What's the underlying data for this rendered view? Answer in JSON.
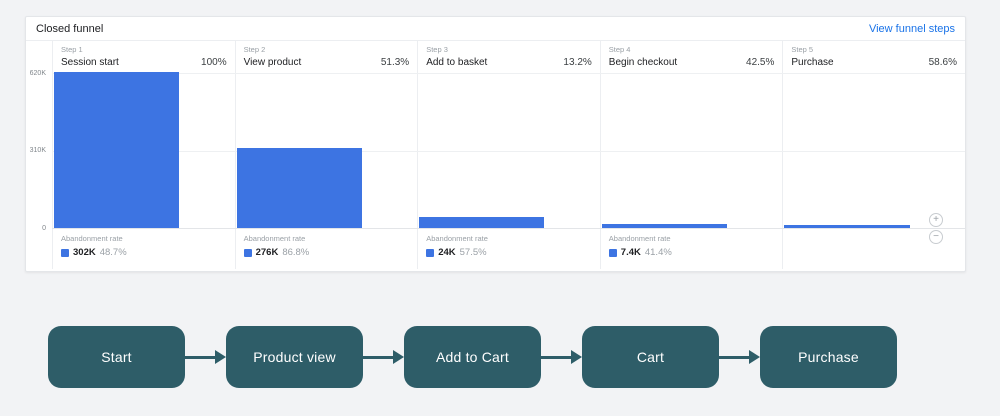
{
  "funnel_card": {
    "title": "Closed funnel",
    "link_label": "View funnel steps",
    "y_axis": {
      "labels": [
        "620K",
        "310K",
        "0"
      ]
    },
    "steps": [
      {
        "step_label": "Step 1",
        "name": "Session start",
        "rate": "100%",
        "abandonment": {
          "label": "Abandonment rate",
          "count": "302K",
          "rate": "48.7%"
        }
      },
      {
        "step_label": "Step 2",
        "name": "View product",
        "rate": "51.3%",
        "abandonment": {
          "label": "Abandonment rate",
          "count": "276K",
          "rate": "86.8%"
        }
      },
      {
        "step_label": "Step 3",
        "name": "Add to basket",
        "rate": "13.2%",
        "abandonment": {
          "label": "Abandonment rate",
          "count": "24K",
          "rate": "57.5%"
        }
      },
      {
        "step_label": "Step 4",
        "name": "Begin checkout",
        "rate": "42.5%",
        "abandonment": {
          "label": "Abandonment rate",
          "count": "7.4K",
          "rate": "41.4%"
        }
      },
      {
        "step_label": "Step 5",
        "name": "Purchase",
        "rate": "58.6%",
        "abandonment": null
      }
    ],
    "zoom_in_glyph": "+",
    "zoom_out_glyph": "−"
  },
  "chart_data": {
    "type": "bar",
    "title": "Closed funnel",
    "categories": [
      "Session start",
      "View product",
      "Add to basket",
      "Begin checkout",
      "Purchase"
    ],
    "values": [
      620000,
      318000,
      42000,
      17800,
      10400
    ],
    "completion_rates_pct": [
      100,
      51.3,
      13.2,
      42.5,
      58.6
    ],
    "abandonment": [
      {
        "count": "302K",
        "rate_pct": 48.7
      },
      {
        "count": "276K",
        "rate_pct": 86.8
      },
      {
        "count": "24K",
        "rate_pct": 57.5
      },
      {
        "count": "7.4K",
        "rate_pct": 41.4
      },
      null
    ],
    "ylabel_ticks": [
      "620K",
      "310K",
      "0"
    ],
    "ylim": [
      0,
      620000
    ],
    "bar_color": "#3d74e2",
    "grid": true,
    "legend_position": "none"
  },
  "flow_diagram": {
    "box_color": "#2e5d68",
    "text_color": "#ffffff",
    "nodes": [
      "Start",
      "Product view",
      "Add to Cart",
      "Cart",
      "Purchase"
    ]
  }
}
